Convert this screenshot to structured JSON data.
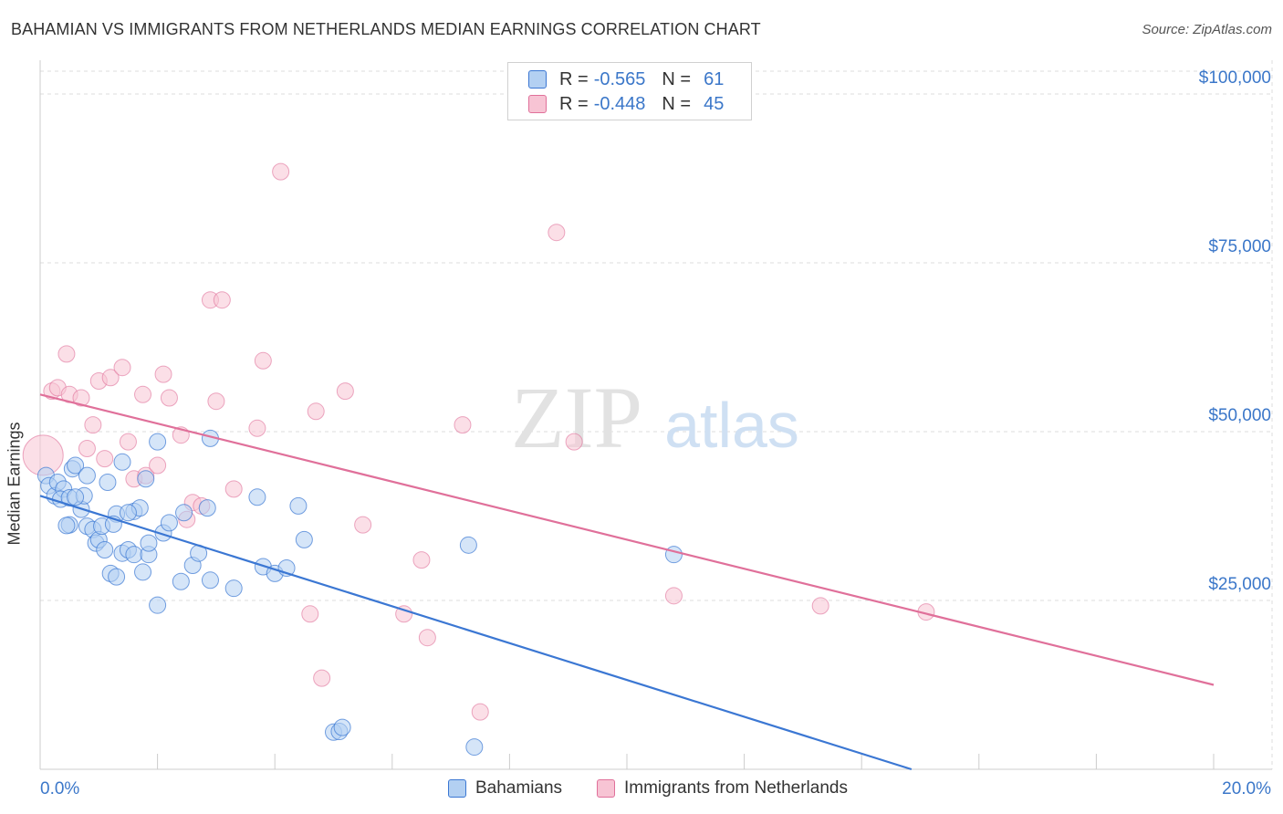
{
  "title": "BAHAMIAN VS IMMIGRANTS FROM NETHERLANDS MEDIAN EARNINGS CORRELATION CHART",
  "source": "Source: ZipAtlas.com",
  "watermark": {
    "zip": "ZIP",
    "atlas": "atlas"
  },
  "colors": {
    "blue": "#3b77d3",
    "blue_fill": "#b3d0f2",
    "pink": "#e0709a",
    "pink_fill": "#f7c4d4",
    "axis_text": "#3b77c9",
    "grid": "#dddddd"
  },
  "legend": {
    "rows": [
      {
        "r_label": "R =",
        "r_value": "-0.565",
        "n_label": "N =",
        "n_value": "61"
      },
      {
        "r_label": "R =",
        "r_value": "-0.448",
        "n_label": "N =",
        "n_value": "45"
      }
    ]
  },
  "bottom_legend": {
    "series1": "Bahamians",
    "series2": "Immigrants from Netherlands"
  },
  "chart_data": {
    "type": "scatter",
    "title": "BAHAMIAN VS IMMIGRANTS FROM NETHERLANDS MEDIAN EARNINGS CORRELATION CHART",
    "xlabel": "",
    "ylabel": "Median Earnings",
    "xlim": [
      0,
      20
    ],
    "ylim": [
      0,
      105000
    ],
    "x_tick_labels": [
      "0.0%",
      "20.0%"
    ],
    "y_ticks": [
      25000,
      50000,
      75000,
      100000
    ],
    "y_tick_labels": [
      "$25,000",
      "$50,000",
      "$75,000",
      "$100,000"
    ],
    "grid": true,
    "legend_position": "top-center",
    "series": [
      {
        "name": "Bahamians",
        "r": -0.565,
        "n": 61,
        "trend": {
          "x": [
            0,
            14.85
          ],
          "y": [
            40500,
            0
          ]
        },
        "points": [
          [
            0.1,
            43500
          ],
          [
            0.15,
            42000
          ],
          [
            0.25,
            40500
          ],
          [
            0.3,
            42500
          ],
          [
            0.4,
            41500
          ],
          [
            0.35,
            40000
          ],
          [
            0.5,
            40200
          ],
          [
            0.55,
            44500
          ],
          [
            0.6,
            45000
          ],
          [
            0.7,
            38500
          ],
          [
            0.8,
            36000
          ],
          [
            0.5,
            36200
          ],
          [
            0.9,
            35500
          ],
          [
            0.95,
            33500
          ],
          [
            1.0,
            34000
          ],
          [
            1.1,
            32500
          ],
          [
            1.2,
            29000
          ],
          [
            1.3,
            28500
          ],
          [
            1.4,
            32000
          ],
          [
            1.5,
            32500
          ],
          [
            1.6,
            31800
          ],
          [
            1.75,
            29200
          ],
          [
            1.85,
            31800
          ],
          [
            2.0,
            24300
          ],
          [
            2.1,
            35000
          ],
          [
            1.3,
            37800
          ],
          [
            1.6,
            38200
          ],
          [
            1.7,
            38700
          ],
          [
            1.85,
            33500
          ],
          [
            2.2,
            36500
          ],
          [
            2.4,
            27800
          ],
          [
            2.6,
            30200
          ],
          [
            2.7,
            32000
          ],
          [
            2.85,
            38700
          ],
          [
            2.9,
            28000
          ],
          [
            3.3,
            26800
          ],
          [
            3.7,
            40300
          ],
          [
            3.8,
            30000
          ],
          [
            4.0,
            29000
          ],
          [
            4.2,
            29800
          ],
          [
            4.4,
            39000
          ],
          [
            4.5,
            34000
          ],
          [
            2.0,
            48500
          ],
          [
            2.9,
            49000
          ],
          [
            1.4,
            45500
          ],
          [
            1.15,
            42500
          ],
          [
            0.8,
            43500
          ],
          [
            0.75,
            40500
          ],
          [
            2.45,
            38000
          ],
          [
            1.8,
            43000
          ],
          [
            1.05,
            36000
          ],
          [
            1.25,
            36300
          ],
          [
            5.0,
            5500
          ],
          [
            5.1,
            5600
          ],
          [
            5.15,
            6200
          ],
          [
            7.4,
            3300
          ],
          [
            7.3,
            33200
          ],
          [
            10.8,
            31800
          ],
          [
            0.45,
            36100
          ],
          [
            0.6,
            40300
          ],
          [
            1.5,
            38000
          ]
        ]
      },
      {
        "name": "Immigrants from Netherlands",
        "r": -0.448,
        "n": 45,
        "trend": {
          "x": [
            0,
            20
          ],
          "y": [
            55500,
            12500
          ]
        },
        "points": [
          [
            0.05,
            46500
          ],
          [
            0.2,
            56000
          ],
          [
            0.3,
            56500
          ],
          [
            0.45,
            61500
          ],
          [
            0.5,
            55500
          ],
          [
            0.7,
            55000
          ],
          [
            0.8,
            47500
          ],
          [
            0.9,
            51000
          ],
          [
            1.0,
            57500
          ],
          [
            1.1,
            46000
          ],
          [
            1.2,
            58000
          ],
          [
            1.4,
            59500
          ],
          [
            1.5,
            48500
          ],
          [
            1.6,
            43000
          ],
          [
            1.75,
            55500
          ],
          [
            1.8,
            43500
          ],
          [
            2.0,
            45000
          ],
          [
            2.1,
            58500
          ],
          [
            2.2,
            55000
          ],
          [
            2.4,
            49500
          ],
          [
            2.5,
            37000
          ],
          [
            2.6,
            39500
          ],
          [
            2.75,
            39000
          ],
          [
            2.9,
            69500
          ],
          [
            3.1,
            69500
          ],
          [
            3.0,
            54500
          ],
          [
            3.3,
            41500
          ],
          [
            3.7,
            50500
          ],
          [
            3.8,
            60500
          ],
          [
            4.1,
            88500
          ],
          [
            4.6,
            23000
          ],
          [
            4.7,
            53000
          ],
          [
            4.8,
            13500
          ],
          [
            5.2,
            56000
          ],
          [
            5.5,
            36200
          ],
          [
            6.2,
            23000
          ],
          [
            6.5,
            31000
          ],
          [
            6.6,
            19500
          ],
          [
            7.2,
            51000
          ],
          [
            7.5,
            8500
          ],
          [
            8.8,
            79500
          ],
          [
            9.1,
            48500
          ],
          [
            10.8,
            25700
          ],
          [
            13.3,
            24200
          ],
          [
            15.1,
            23300
          ]
        ]
      }
    ]
  }
}
